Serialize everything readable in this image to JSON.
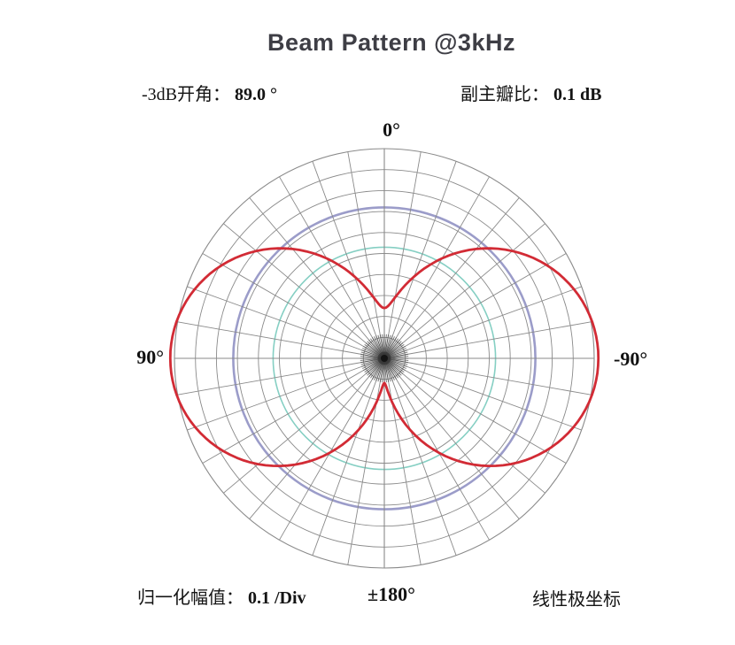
{
  "header": {
    "title": "Beam Pattern @3kHz"
  },
  "stats": {
    "left_label": "-3dB开角：",
    "left_value": "89.0 °",
    "right_label": "副主瓣比：",
    "right_value": "0.1 dB"
  },
  "footer": {
    "left_label": "归一化幅值：",
    "left_value": "0.1 /Div",
    "center_value": "±180°",
    "right_label": "线性极坐标"
  },
  "chart_data": {
    "type": "polar",
    "title": "Beam Pattern @3kHz",
    "angle_tick_labels": {
      "top": "0°",
      "left": "90°",
      "right": "-90°",
      "bottom": "±180°"
    },
    "angle_convention": "0° at top, +90° at left, -90° at right, ±180° at bottom",
    "radial_range": [
      0,
      1.0
    ],
    "radial_division": 0.1,
    "ring_levels": [
      0.1,
      0.2,
      0.3,
      0.4,
      0.5,
      0.6,
      0.7,
      0.8,
      0.9,
      1.0
    ],
    "spoke_step_deg": 10,
    "center_fan": {
      "spoke_step_deg": 5,
      "extent_level": 0.115
    },
    "grid_color": "#8a8a8a",
    "reference_circles": [
      {
        "name": "-3dB-circle",
        "level": 0.72,
        "color": "#9b9cc9",
        "width": 2.6
      },
      {
        "name": "half-level-circle",
        "level": 0.53,
        "color": "#85cfc3",
        "width": 1.6
      }
    ],
    "beam_curve": {
      "color": "#d22b35",
      "width": 2.8,
      "peak": 1.02,
      "front_dip_at_0deg": 0.235,
      "back_dip_at_180deg": 0.115,
      "model": "r(a)=peak*sqrt(sin(a)^2 + d^2*cos(a)^2), d=front dip for |a|<90 else back dip; symmetric left/right",
      "r_by_5deg_0_to_180": [
        0.24,
        0.255,
        0.295,
        0.351,
        0.415,
        0.483,
        0.551,
        0.617,
        0.681,
        0.741,
        0.796,
        0.847,
        0.891,
        0.93,
        0.962,
        0.987,
        1.005,
        1.016,
        1.02,
        1.016,
        1.005,
        0.986,
        0.959,
        0.926,
        0.885,
        0.838,
        0.785,
        0.726,
        0.662,
        0.593,
        0.52,
        0.444,
        0.366,
        0.287,
        0.211,
        0.147,
        0.117
      ]
    },
    "annotations": {
      "beamwidth_minus3dB_deg": 89.0,
      "side_main_lobe_ratio_dB": 0.1,
      "normalized_amplitude_per_div": 0.1,
      "coordinate_type": "线性极坐标"
    }
  }
}
